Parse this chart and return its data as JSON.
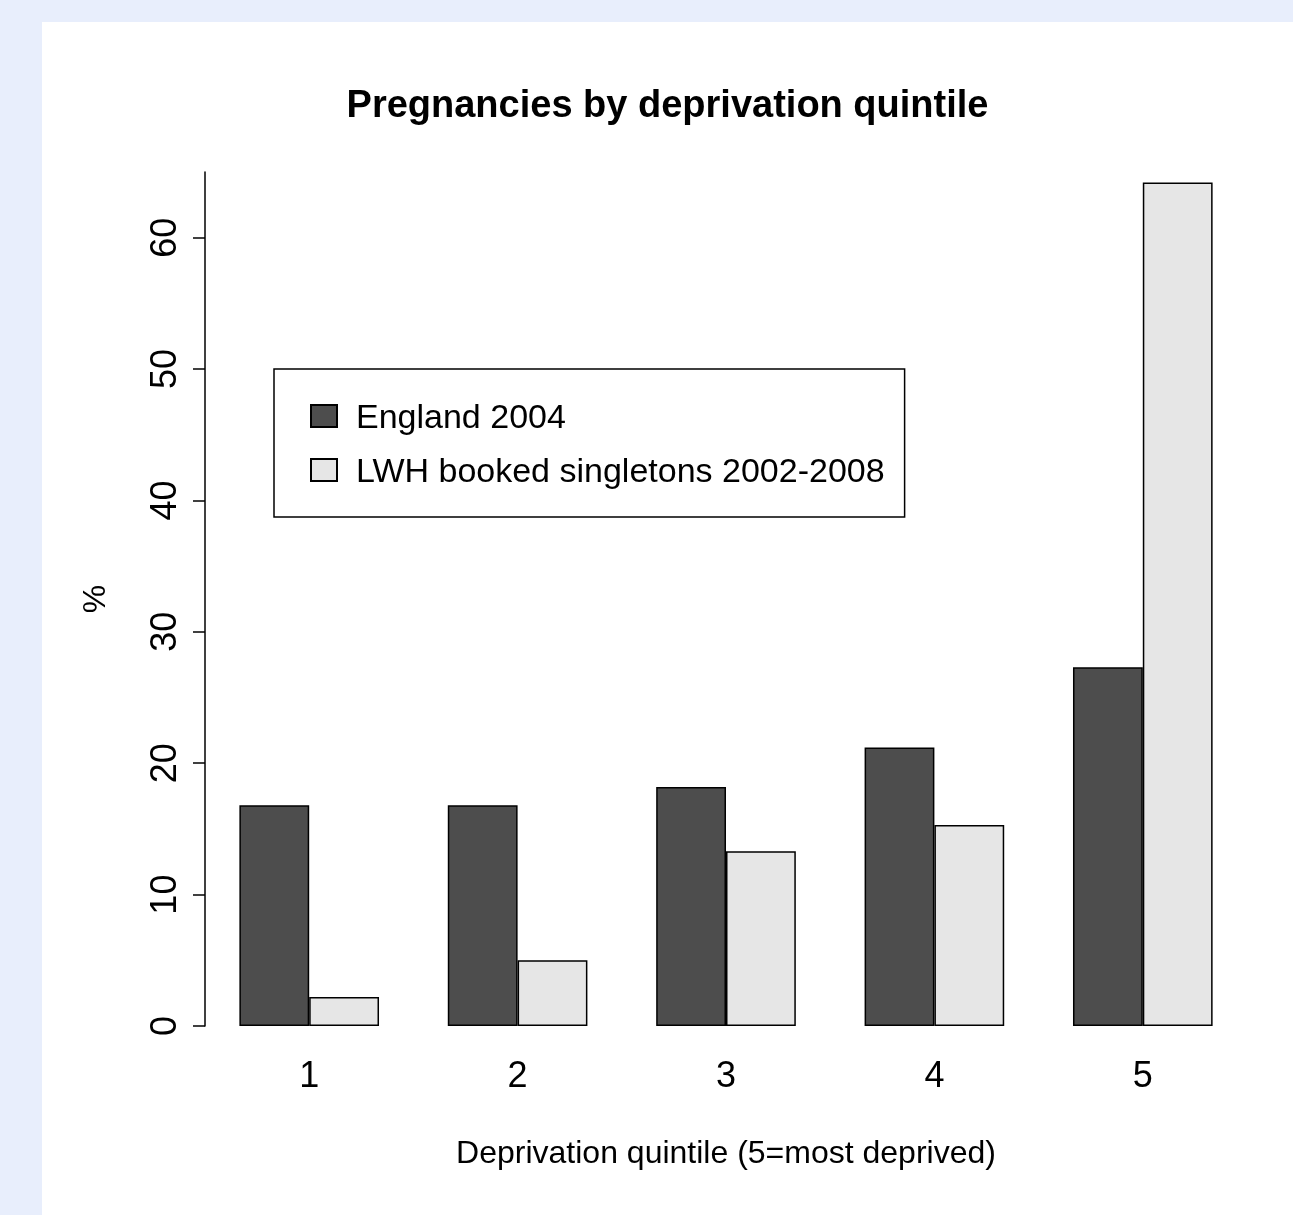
{
  "chart_data": {
    "type": "bar",
    "title": "Pregnancies by deprivation quintile",
    "xlabel": "Deprivation quintile (5=most deprived)",
    "ylabel": "%",
    "categories": [
      "1",
      "2",
      "3",
      "4",
      "5"
    ],
    "series": [
      {
        "name": "England 2004",
        "color": "#4d4d4d",
        "values": [
          16.8,
          16.8,
          18.2,
          21.2,
          27.3
        ]
      },
      {
        "name": "LWH booked singletons 2002-2008",
        "color": "#e6e6e6",
        "values": [
          2.2,
          5.0,
          13.3,
          15.3,
          64.2
        ]
      }
    ],
    "ylim": [
      0,
      65
    ],
    "yticks": [
      0,
      10,
      20,
      30,
      40,
      50,
      60
    ],
    "grid": false,
    "legend": "top left"
  }
}
